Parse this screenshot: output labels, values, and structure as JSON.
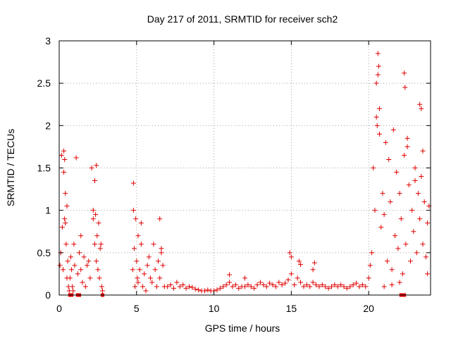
{
  "chart_data": {
    "type": "scatter",
    "title": "Day 217 of 2011, SRMTID for receiver sch2",
    "xlabel": "GPS time / hours",
    "ylabel": "SRMTID / TECUs",
    "xlim": [
      0,
      24
    ],
    "ylim": [
      0,
      3
    ],
    "xticks": [
      0,
      5,
      10,
      15,
      20
    ],
    "yticks": [
      0,
      0.5,
      1,
      1.5,
      2,
      2.5,
      3
    ],
    "ytick_labels": [
      "0",
      "0.5",
      "1",
      "1.5",
      "2",
      "2.5",
      "3"
    ],
    "grid": true,
    "marker": "+",
    "marker_color": "#e00000",
    "series": [
      {
        "name": "SRMTID",
        "x": [
          0.05,
          0.1,
          0.15,
          0.2,
          0.25,
          0.3,
          0.35,
          0.4,
          0.45,
          0.5,
          0.55,
          0.6,
          0.65,
          0.7,
          0.75,
          0.8,
          0.85,
          0.9,
          0.95,
          1.0,
          1.1,
          1.2,
          1.3,
          1.4,
          1.5,
          1.6,
          1.7,
          1.8,
          1.9,
          2.0,
          2.1,
          2.2,
          2.3,
          2.35,
          2.4,
          2.45,
          2.5,
          2.55,
          2.6,
          2.65,
          2.7,
          2.75,
          2.8,
          0.3,
          0.35,
          0.4,
          0.5,
          1.4,
          2.2,
          2.3,
          2.4,
          4.75,
          4.8,
          4.85,
          4.9,
          4.95,
          5.0,
          5.05,
          5.1,
          5.2,
          5.3,
          5.4,
          5.5,
          5.6,
          5.7,
          5.8,
          5.9,
          6.0,
          6.1,
          6.2,
          6.3,
          6.4,
          6.5,
          6.6,
          6.7,
          6.8,
          4.8,
          5.1,
          5.3,
          6.5,
          6.6,
          7.0,
          7.2,
          7.4,
          7.6,
          7.8,
          8.0,
          8.2,
          8.4,
          8.6,
          8.8,
          9.0,
          9.2,
          9.4,
          9.6,
          9.8,
          10.0,
          10.2,
          10.4,
          10.6,
          10.8,
          11.0,
          11.2,
          11.4,
          11.6,
          11.8,
          12.0,
          12.2,
          12.4,
          12.6,
          12.8,
          13.0,
          13.2,
          13.4,
          13.6,
          13.8,
          14.0,
          14.2,
          14.4,
          14.6,
          14.8,
          15.0,
          15.2,
          15.4,
          15.6,
          15.8,
          16.0,
          16.2,
          16.4,
          16.6,
          16.8,
          17.0,
          17.2,
          17.4,
          17.6,
          17.8,
          18.0,
          18.2,
          18.4,
          18.6,
          18.8,
          19.0,
          19.2,
          19.4,
          19.6,
          19.8,
          20.0,
          11.0,
          12.0,
          14.9,
          15.0,
          15.5,
          15.6,
          16.4,
          16.5,
          20.1,
          20.2,
          20.3,
          20.4,
          20.5,
          20.6,
          20.7,
          20.8,
          20.9,
          21.0,
          21.1,
          21.2,
          21.3,
          21.4,
          21.5,
          21.6,
          21.7,
          21.8,
          21.9,
          22.0,
          22.1,
          22.2,
          22.3,
          22.4,
          22.5,
          22.6,
          22.7,
          22.8,
          22.9,
          23.0,
          23.1,
          23.2,
          23.3,
          23.4,
          23.5,
          23.6,
          23.7,
          23.8,
          23.9,
          20.6,
          20.65,
          20.7,
          22.3,
          22.35,
          23.3,
          23.4,
          20.5,
          20.55,
          22.5,
          23.5,
          21.0,
          21.5,
          22.0,
          23.0,
          23.8
        ],
        "y": [
          0.35,
          0.5,
          1.65,
          0.8,
          0.3,
          1.45,
          0.9,
          1.2,
          0.6,
          0.2,
          0.4,
          0.1,
          0.05,
          0.2,
          0.45,
          0.3,
          0.1,
          0.05,
          0.6,
          0.35,
          1.62,
          0.25,
          0.5,
          0.3,
          0.15,
          0.45,
          0.1,
          0.35,
          0.4,
          0.2,
          1.5,
          0.9,
          0.6,
          0.95,
          0.4,
          0.7,
          0.3,
          0.85,
          0.2,
          0.55,
          0.6,
          0.1,
          0.05,
          1.7,
          1.6,
          0.85,
          1.05,
          0.7,
          1.0,
          1.35,
          1.53,
          0.3,
          1.32,
          0.55,
          0.1,
          0.9,
          0.4,
          0.2,
          0.15,
          0.3,
          0.6,
          0.1,
          0.25,
          0.05,
          0.35,
          0.45,
          0.2,
          0.15,
          0.6,
          0.3,
          0.1,
          0.4,
          0.2,
          0.5,
          0.35,
          0.1,
          1.0,
          0.7,
          0.85,
          0.9,
          0.55,
          0.1,
          0.12,
          0.08,
          0.15,
          0.1,
          0.12,
          0.08,
          0.1,
          0.09,
          0.07,
          0.06,
          0.05,
          0.05,
          0.06,
          0.05,
          0.05,
          0.06,
          0.08,
          0.1,
          0.12,
          0.15,
          0.1,
          0.12,
          0.08,
          0.1,
          0.1,
          0.12,
          0.1,
          0.08,
          0.12,
          0.15,
          0.12,
          0.1,
          0.14,
          0.12,
          0.1,
          0.15,
          0.12,
          0.14,
          0.18,
          0.25,
          0.12,
          0.2,
          0.15,
          0.1,
          0.12,
          0.1,
          0.15,
          0.12,
          0.1,
          0.12,
          0.1,
          0.08,
          0.1,
          0.12,
          0.1,
          0.12,
          0.1,
          0.08,
          0.1,
          0.12,
          0.14,
          0.1,
          0.12,
          0.1,
          0.2,
          0.24,
          0.2,
          0.5,
          0.45,
          0.4,
          0.36,
          0.3,
          0.38,
          0.35,
          0.5,
          1.5,
          1.0,
          2.5,
          2.6,
          1.9,
          0.8,
          1.2,
          0.95,
          1.8,
          0.4,
          1.6,
          1.1,
          0.3,
          1.95,
          0.7,
          1.45,
          0.55,
          1.2,
          0.9,
          0.25,
          1.65,
          0.6,
          1.85,
          1.3,
          0.4,
          1.0,
          0.75,
          1.5,
          0.5,
          1.2,
          0.9,
          1.4,
          0.6,
          1.1,
          0.45,
          0.85,
          1.05,
          2.85,
          2.7,
          2.2,
          2.62,
          2.45,
          2.25,
          2.2,
          2.1,
          2.0,
          1.75,
          1.7,
          0.1,
          0.12,
          0.15,
          1.35,
          0.25
        ]
      }
    ],
    "zero_markers_x": [
      0.7,
      0.8,
      1.2,
      1.3,
      2.8,
      22.1,
      22.2,
      22.3
    ]
  }
}
